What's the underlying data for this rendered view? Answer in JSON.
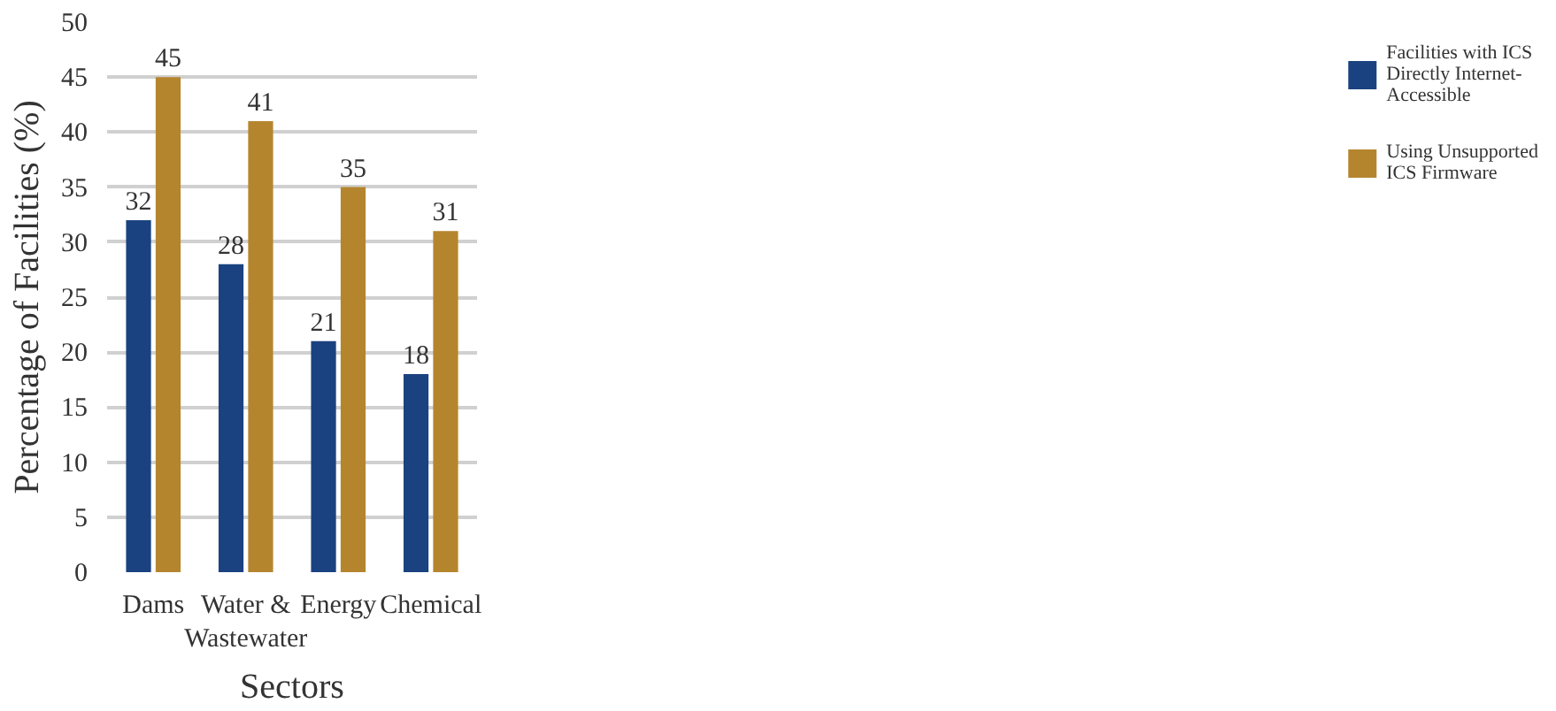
{
  "chart_data": {
    "type": "bar",
    "xlabel": "Sectors",
    "ylabel": "Percentage of Facilities (%)",
    "categories": [
      "Dams",
      "Water & Wastewater",
      "Energy",
      "Chemical"
    ],
    "series": [
      {
        "name": "Facilities with ICS Directly Internet-Accessible",
        "color": "#1b4280",
        "values": [
          32,
          28,
          21,
          18
        ]
      },
      {
        "name": "Using Unsupported ICS Firmware",
        "color": "#b5852e",
        "values": [
          45,
          41,
          35,
          31
        ]
      }
    ],
    "ylim": [
      0,
      50
    ],
    "yticks": [
      0,
      5,
      10,
      15,
      20,
      25,
      30,
      35,
      40,
      45,
      50
    ],
    "grid": "y",
    "legend": "right",
    "data_labels": true
  }
}
